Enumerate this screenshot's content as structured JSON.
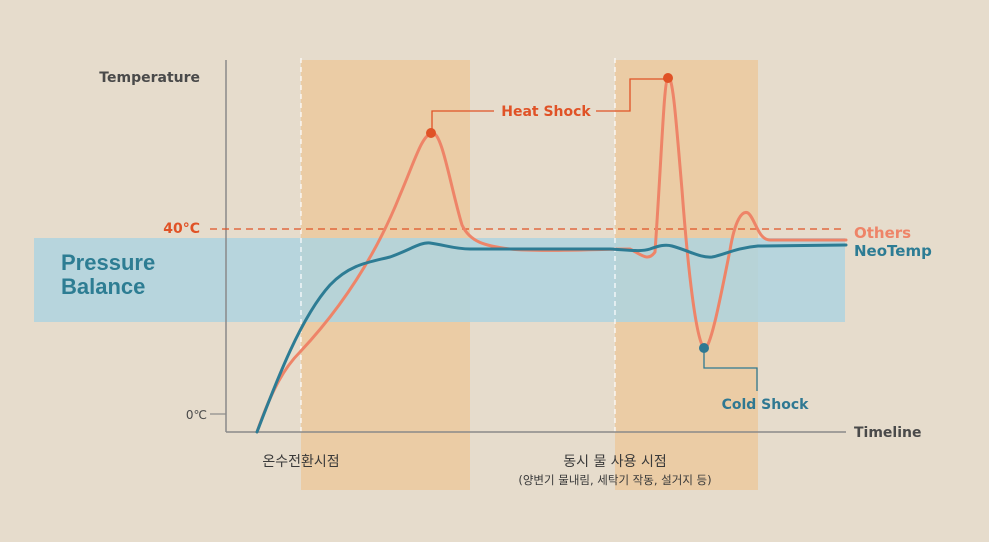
{
  "chart_data": {
    "type": "line",
    "ylabel": "Temperature",
    "xlabel": "Timeline",
    "y_ticks": {
      "zero": "0℃",
      "threshold": "40°C"
    },
    "band_label_line1": "Pressure",
    "band_label_line2": "Balance",
    "phases": {
      "first": "온수전환시점",
      "second": "동시 물 사용 시점",
      "second_sub": "(양변기 물내림, 세탁기 작동, 설거지 등)"
    },
    "annotations": {
      "heat_shock": "Heat Shock",
      "cold_shock": "Cold Shock"
    },
    "series": [
      {
        "name": "Others",
        "color": "#ee8468"
      },
      {
        "name": "NeoTemp",
        "color": "#2d7c94"
      }
    ],
    "colors": {
      "background": "#e6dccc",
      "band": "#aed4df",
      "phase": "#ebcca5",
      "threshold": "#e05226",
      "axis": "#8a8a8a"
    }
  }
}
